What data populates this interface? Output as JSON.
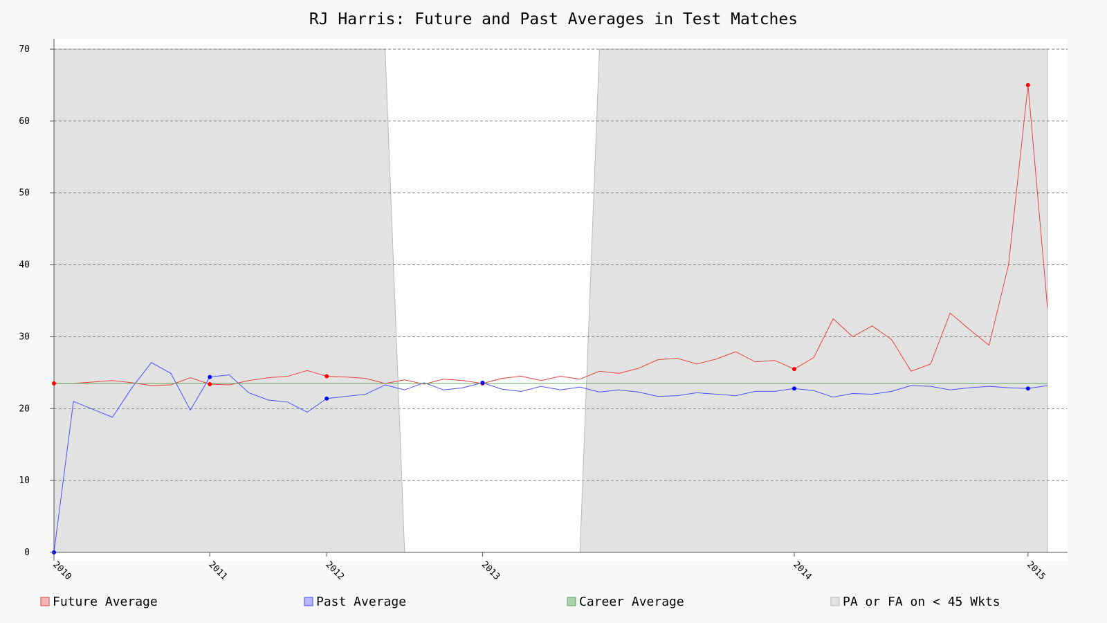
{
  "chart_data": {
    "type": "line",
    "title": "RJ Harris: Future and Past Averages in Test Matches",
    "xlabel": "",
    "ylabel": "",
    "ylim": [
      0,
      70
    ],
    "yticks": [
      0,
      10,
      20,
      30,
      40,
      50,
      60,
      70
    ],
    "grid": true,
    "legend_position": "bottom",
    "x_tick_labels": [
      {
        "label": "2010",
        "match": 0
      },
      {
        "label": "2011",
        "match": 8
      },
      {
        "label": "2012",
        "match": 14
      },
      {
        "label": "2013",
        "match": 22
      },
      {
        "label": "2014",
        "match": 38
      },
      {
        "label": "2015",
        "match": 50
      }
    ],
    "match_range": [
      0,
      51
    ],
    "series": [
      {
        "name": "Future Average",
        "color": "#e8413c",
        "values": [
          23.5,
          23.5,
          23.7,
          23.9,
          23.6,
          23.2,
          23.3,
          24.3,
          23.4,
          23.3,
          23.9,
          24.3,
          24.5,
          25.3,
          24.5,
          24.4,
          24.2,
          23.5,
          24.0,
          23.4,
          24.1,
          23.9,
          23.5,
          24.2,
          24.5,
          23.9,
          24.5,
          24.1,
          25.2,
          24.9,
          25.6,
          26.8,
          27.0,
          26.2,
          26.9,
          27.9,
          26.5,
          26.7,
          25.5,
          27.1,
          32.5,
          30.0,
          31.5,
          29.6,
          25.2,
          26.2,
          33.3,
          31.0,
          28.8,
          40.0,
          65.0,
          34.0
        ],
        "markers": [
          {
            "match": 0,
            "value": 23.5
          },
          {
            "match": 8,
            "value": 23.4
          },
          {
            "match": 14,
            "value": 24.5
          },
          {
            "match": 22,
            "value": 23.5
          },
          {
            "match": 38,
            "value": 25.5
          },
          {
            "match": 50,
            "value": 65.0
          }
        ]
      },
      {
        "name": "Past Average",
        "color": "#4b4bff",
        "values": [
          0.0,
          21.0,
          19.9,
          18.8,
          22.9,
          26.4,
          24.9,
          19.8,
          24.4,
          24.7,
          22.2,
          21.2,
          20.9,
          19.5,
          21.4,
          21.7,
          22.0,
          23.3,
          22.6,
          23.6,
          22.6,
          22.9,
          23.6,
          22.7,
          22.4,
          23.1,
          22.6,
          23.0,
          22.3,
          22.6,
          22.3,
          21.7,
          21.8,
          22.2,
          22.0,
          21.8,
          22.4,
          22.4,
          22.8,
          22.5,
          21.6,
          22.1,
          22.0,
          22.4,
          23.2,
          23.1,
          22.6,
          22.9,
          23.1,
          22.9,
          22.8,
          23.2
        ],
        "markers": [
          {
            "match": 0,
            "value": 0.0
          },
          {
            "match": 8,
            "value": 24.4
          },
          {
            "match": 14,
            "value": 21.4
          },
          {
            "match": 22,
            "value": 23.6
          },
          {
            "match": 38,
            "value": 22.8
          },
          {
            "match": 50,
            "value": 22.8
          }
        ]
      },
      {
        "name": "Career Average",
        "color": "#5fa85f",
        "values": [
          23.5,
          23.5
        ]
      }
    ],
    "shaded_regions": {
      "name": "PA or FA on < 45 Wkts",
      "color": "#e2e2e2",
      "edge_color": "#b8b8b8",
      "ranges": [
        [
          0,
          18
        ],
        [
          28,
          51
        ]
      ]
    },
    "legend": [
      {
        "label": "Future Average",
        "swatch_fill": "#f4b6b4",
        "swatch_stroke": "#e8413c"
      },
      {
        "label": "Past Average",
        "swatch_fill": "#b7b7f7",
        "swatch_stroke": "#4b4bff"
      },
      {
        "label": "Career Average",
        "swatch_fill": "#acd2ac",
        "swatch_stroke": "#5fa85f"
      },
      {
        "label": "PA or FA on < 45 Wkts",
        "swatch_fill": "#e2e2e2",
        "swatch_stroke": "#b8b8b8"
      }
    ]
  }
}
